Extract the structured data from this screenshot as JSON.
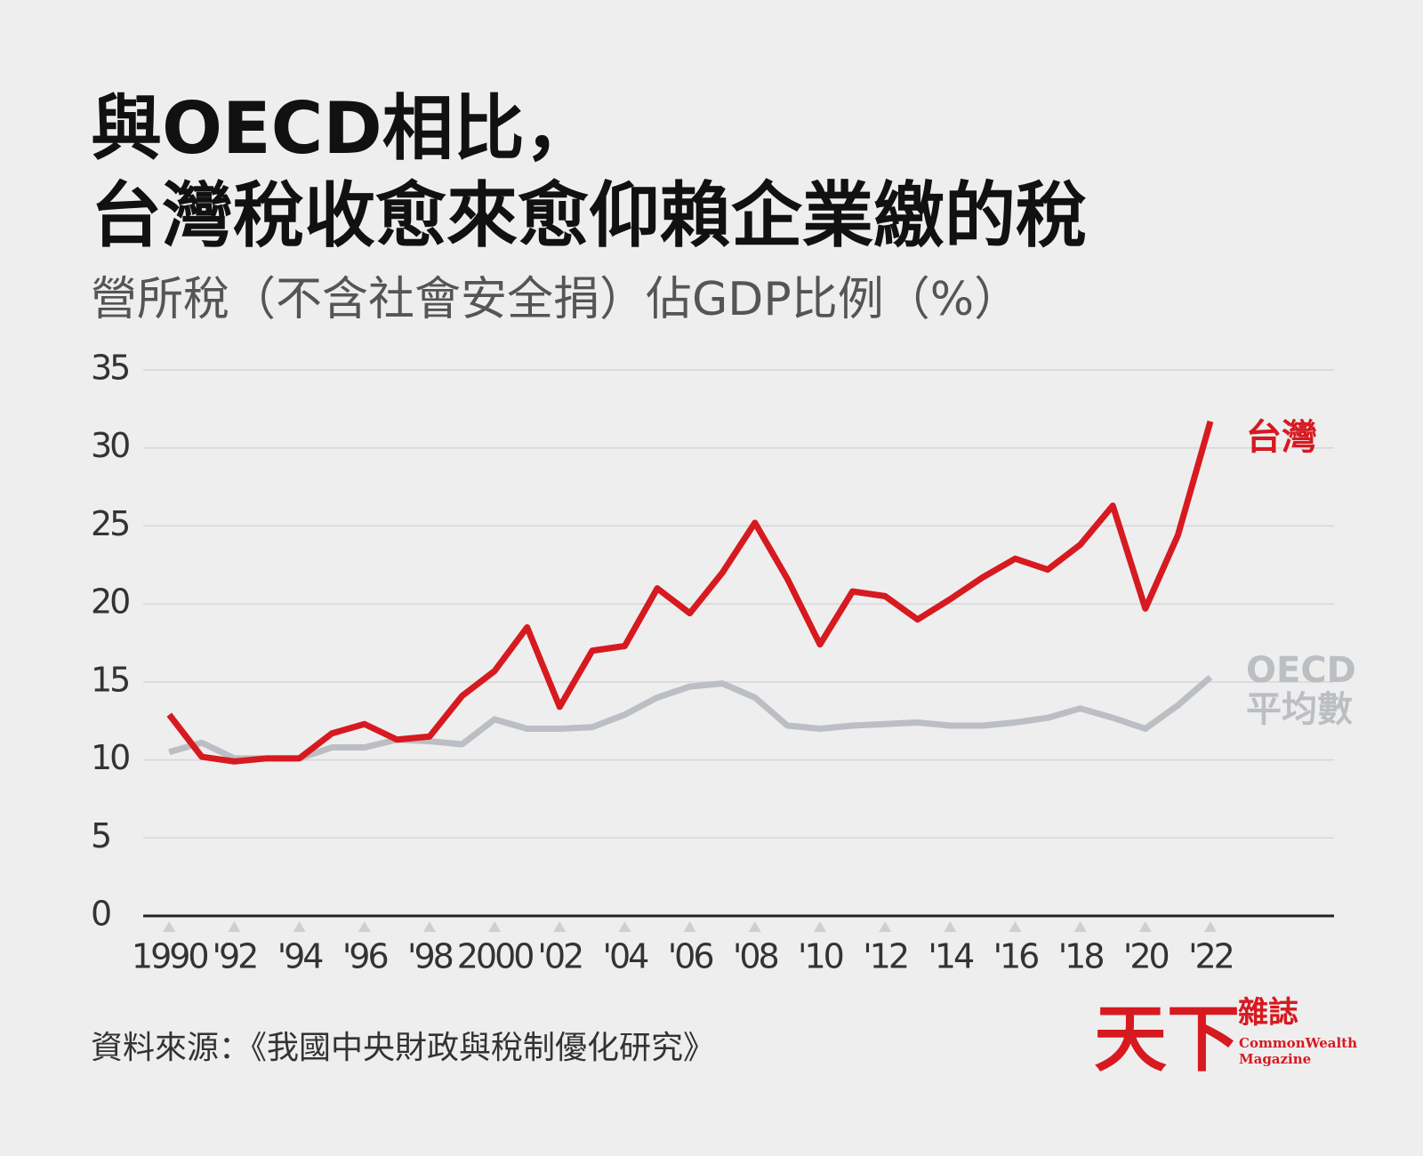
{
  "chart_data": {
    "type": "line",
    "title": [
      "與OECD相比，",
      "台灣稅收愈來愈仰賴企業繳的稅"
    ],
    "subtitle": "營所稅（不含社會安全捐）佔GDP比例（%）",
    "x": [
      1990,
      1991,
      1992,
      1993,
      1994,
      1995,
      1996,
      1997,
      1998,
      1999,
      2000,
      2001,
      2002,
      2003,
      2004,
      2005,
      2006,
      2007,
      2008,
      2009,
      2010,
      2011,
      2012,
      2013,
      2014,
      2015,
      2016,
      2017,
      2018,
      2019,
      2020,
      2021,
      2022
    ],
    "series": [
      {
        "name": "台灣",
        "color": "#d71920",
        "values": [
          12.9,
          10.2,
          9.9,
          10.1,
          10.1,
          11.7,
          12.3,
          11.3,
          11.5,
          14.1,
          15.7,
          18.5,
          13.4,
          17.0,
          17.3,
          21.0,
          19.4,
          22.0,
          25.2,
          21.6,
          17.4,
          20.8,
          20.5,
          19.0,
          20.3,
          21.7,
          22.9,
          22.2,
          23.8,
          26.3,
          19.7,
          24.4,
          31.7
        ]
      },
      {
        "name": "OECD平均數",
        "color": "#bbbec2",
        "values": [
          10.5,
          11.1,
          10.1,
          10.1,
          10.1,
          10.8,
          10.8,
          11.3,
          11.2,
          11.0,
          12.6,
          12.0,
          12.0,
          12.1,
          12.9,
          14.0,
          14.7,
          14.9,
          14.0,
          12.2,
          12.0,
          12.2,
          12.3,
          12.4,
          12.2,
          12.2,
          12.4,
          12.7,
          13.3,
          12.7,
          12.0,
          13.5,
          15.3
        ]
      }
    ],
    "xlim": [
      1989.2,
      2025.8
    ],
    "xticks": [
      1990,
      {
        "value": 1992,
        "label": "'92"
      },
      {
        "value": 1994,
        "label": "'94"
      },
      {
        "value": 1996,
        "label": "'96"
      },
      {
        "value": 1998,
        "label": "'98"
      },
      2000,
      {
        "value": 2002,
        "label": "'02"
      },
      {
        "value": 2004,
        "label": "'04"
      },
      {
        "value": 2006,
        "label": "'06"
      },
      {
        "value": 2008,
        "label": "'08"
      },
      {
        "value": 2010,
        "label": "'10"
      },
      {
        "value": 2012,
        "label": "'12"
      },
      {
        "value": 2014,
        "label": "'14"
      },
      {
        "value": 2016,
        "label": "'16"
      },
      {
        "value": 2018,
        "label": "'18"
      },
      {
        "value": 2020,
        "label": "'20"
      },
      {
        "value": 2022,
        "label": "'22"
      }
    ],
    "ylim": [
      0,
      35
    ],
    "yticks": [
      0,
      5,
      10,
      15,
      20,
      25,
      30,
      35
    ],
    "grid": true,
    "source": "資料來源：《我國中央財政與稅制優化研究》",
    "logo": {
      "main": "天下",
      "side": "雜誌",
      "en1": "CommonWealth",
      "en2": "Magazine"
    }
  }
}
